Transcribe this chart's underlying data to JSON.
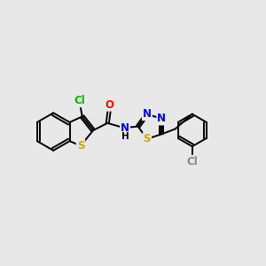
{
  "background_color": "#e8e8e8",
  "bond_color": "#000000",
  "bond_width": 1.4,
  "atom_colors": {
    "S": "#ccaa00",
    "N": "#0000ee",
    "O": "#ff0000",
    "Cl_green": "#00bb00",
    "Cl_para": "#888888",
    "H": "#000000"
  },
  "font_size": 8.5
}
